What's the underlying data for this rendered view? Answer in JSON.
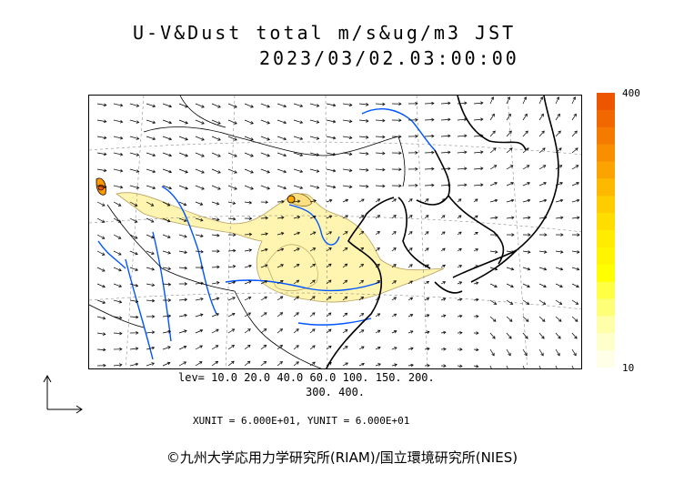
{
  "title": {
    "line1": "U-V&Dust total m/s&ug/m3 JST",
    "line2": "2023/03/02.03:00:00"
  },
  "legend": {
    "max_label": "400",
    "min_label": "10",
    "colors": [
      "#ee5500",
      "#f26800",
      "#f57b00",
      "#f88e00",
      "#fba300",
      "#fdb800",
      "#ffcc00",
      "#ffdd00",
      "#ffec00",
      "#fff500",
      "#ffff00",
      "#ffff44",
      "#ffff77",
      "#ffffaa",
      "#ffffcc",
      "#ffffe8"
    ]
  },
  "levels": {
    "line1": "lev= 10.0 20.0 40.0 60.0 100. 150. 200.",
    "line2": "300. 400."
  },
  "units": "XUNIT = 6.000E+01, YUNIT = 6.000E+01",
  "credit": "©九州大学応用力学研究所(RIAM)/国立環境研究所(NIES)",
  "map_colors": {
    "coast": "#000000",
    "rivers": "#0055ff",
    "dust": "#fff4b0",
    "dust_edge": "#b8a060"
  }
}
